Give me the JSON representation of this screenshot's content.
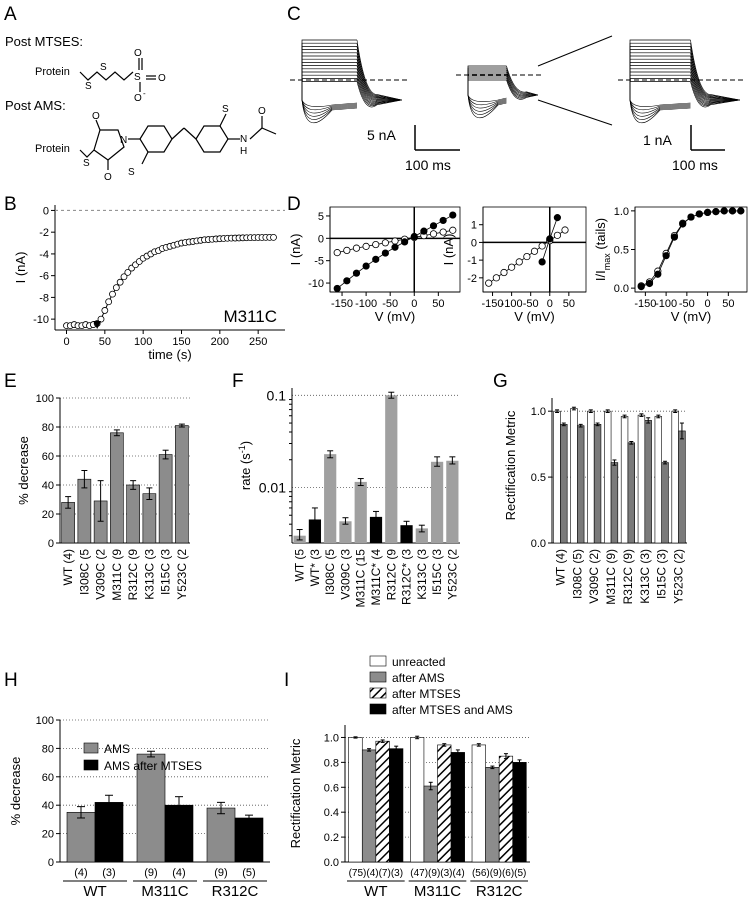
{
  "panels": {
    "A": {
      "label": "A",
      "post_mtses": "Post MTSES:",
      "post_ams": "Post AMS:",
      "protein": "Protein",
      "s": "S",
      "o_minus": "O",
      "n": "N",
      "h": "H",
      "o": "O"
    },
    "B": {
      "label": "B"
    },
    "C": {
      "label": "C",
      "scale_left_current": "5 nA",
      "scale_left_time": "100 ms",
      "scale_right_current": "1 nA",
      "scale_right_time": "100 ms"
    },
    "D": {
      "label": "D"
    },
    "E": {
      "label": "E"
    },
    "F": {
      "label": "F"
    },
    "G": {
      "label": "G"
    },
    "H": {
      "label": "H"
    },
    "I": {
      "label": "I"
    }
  },
  "chart_data": [
    {
      "id": "B",
      "type": "scatter",
      "xlabel": "time (s)",
      "ylabel": "I (nA)",
      "xlim": [
        -15,
        285
      ],
      "ylim": [
        -11,
        0.5
      ],
      "xticks": [
        0,
        50,
        100,
        150,
        200,
        250
      ],
      "yticks": [
        0,
        -2,
        -4,
        -6,
        -8,
        -10
      ],
      "annotation": "M311C",
      "arrow_at_x": 40,
      "dashed_zero_line": true,
      "points_x": [
        0,
        5,
        10,
        15,
        20,
        25,
        30,
        35,
        40,
        45,
        50,
        55,
        60,
        65,
        70,
        75,
        80,
        85,
        90,
        95,
        100,
        105,
        110,
        115,
        120,
        125,
        130,
        135,
        140,
        145,
        150,
        155,
        160,
        165,
        170,
        175,
        180,
        185,
        190,
        195,
        200,
        205,
        210,
        215,
        220,
        225,
        230,
        235,
        240,
        245,
        250,
        255,
        260,
        265,
        270
      ],
      "points_y": [
        -10.6,
        -10.6,
        -10.5,
        -10.6,
        -10.6,
        -10.5,
        -10.6,
        -10.5,
        -10.4,
        -10.0,
        -9.2,
        -8.4,
        -7.7,
        -7.1,
        -6.6,
        -6.1,
        -5.7,
        -5.3,
        -5.0,
        -4.7,
        -4.4,
        -4.2,
        -4.0,
        -3.8,
        -3.7,
        -3.5,
        -3.4,
        -3.3,
        -3.2,
        -3.1,
        -3.0,
        -2.95,
        -2.9,
        -2.85,
        -2.8,
        -2.75,
        -2.7,
        -2.68,
        -2.65,
        -2.62,
        -2.6,
        -2.58,
        -2.56,
        -2.55,
        -2.54,
        -2.53,
        -2.52,
        -2.51,
        -2.5,
        -2.5,
        -2.49,
        -2.49,
        -2.48,
        -2.48,
        -2.48
      ]
    },
    {
      "id": "D1",
      "type": "line",
      "xlabel": "V (mV)",
      "ylabel": "I (nA)",
      "xlim": [
        -175,
        95
      ],
      "ylim": [
        -12,
        7
      ],
      "xticks": [
        -150,
        -100,
        -50,
        0,
        50
      ],
      "yticks": [
        5,
        0,
        -5,
        -10
      ],
      "series": [
        {
          "style": "open",
          "x": [
            -160,
            -140,
            -120,
            -100,
            -80,
            -60,
            -40,
            -20,
            0,
            20,
            40,
            60,
            80
          ],
          "y": [
            -3.2,
            -2.7,
            -2.2,
            -1.8,
            -1.4,
            -1.0,
            -0.6,
            -0.2,
            0.2,
            0.6,
            1.0,
            1.4,
            1.8
          ]
        },
        {
          "style": "filled",
          "x": [
            -160,
            -140,
            -120,
            -100,
            -80,
            -60,
            -40,
            -20,
            0,
            20,
            40,
            60,
            80
          ],
          "y": [
            -11.2,
            -9.5,
            -7.8,
            -6.2,
            -4.7,
            -3.3,
            -2.0,
            -0.8,
            0.4,
            1.6,
            2.8,
            4.0,
            5.2
          ]
        }
      ]
    },
    {
      "id": "D2",
      "type": "line",
      "xlabel": "V (mV)",
      "ylabel": "I (nA)",
      "xlim": [
        -175,
        95
      ],
      "ylim": [
        -2.8,
        2.0
      ],
      "xticks": [
        -150,
        -100,
        -50,
        0,
        50
      ],
      "yticks": [
        1,
        0,
        -1,
        -2
      ],
      "series": [
        {
          "style": "open",
          "x": [
            -160,
            -140,
            -120,
            -100,
            -80,
            -60,
            -40,
            -20,
            0,
            20,
            40
          ],
          "y": [
            -2.3,
            -2.0,
            -1.7,
            -1.4,
            -1.1,
            -0.8,
            -0.5,
            -0.2,
            0.1,
            0.4,
            0.7
          ]
        },
        {
          "style": "filled",
          "x": [
            -20,
            0,
            20
          ],
          "y": [
            -1.1,
            0.2,
            1.4
          ]
        }
      ]
    },
    {
      "id": "D3",
      "type": "line",
      "xlabel": "V (mV)",
      "ylabel": "I/I",
      "ylabel_sub": "max",
      "ylabel_suffix": " (tails)",
      "xlim": [
        -175,
        95
      ],
      "ylim": [
        -0.05,
        1.05
      ],
      "xticks": [
        -150,
        -100,
        -50,
        0,
        50
      ],
      "yticks": [
        0.0,
        0.5,
        1.0
      ],
      "series": [
        {
          "style": "open",
          "x": [
            -160,
            -140,
            -120,
            -100,
            -80,
            -60,
            -40,
            -20,
            0,
            20,
            40,
            60,
            80
          ],
          "y": [
            0.03,
            0.08,
            0.22,
            0.45,
            0.68,
            0.84,
            0.92,
            0.96,
            0.98,
            0.99,
            1.0,
            1.0,
            1.0
          ]
        },
        {
          "style": "filled",
          "x": [
            -160,
            -140,
            -120,
            -100,
            -80,
            -60,
            -40,
            -20,
            0,
            20,
            40,
            60,
            80
          ],
          "y": [
            0.02,
            0.06,
            0.18,
            0.42,
            0.66,
            0.83,
            0.92,
            0.96,
            0.98,
            0.99,
            1.0,
            1.0,
            1.0
          ]
        }
      ]
    },
    {
      "id": "E",
      "type": "bar",
      "ylabel": "% decrease",
      "ylim": [
        0,
        100
      ],
      "yticks": [
        0,
        20,
        40,
        60,
        80,
        100
      ],
      "categories": [
        "WT (4)",
        "I308C (5",
        "V309C (2",
        "M311C (9",
        "R312C (9",
        "K313C (3",
        "I515C (3",
        "Y523C (2"
      ],
      "values": [
        28,
        44,
        29,
        76,
        40,
        34,
        61,
        81
      ],
      "errors": [
        4,
        6,
        14,
        2,
        3,
        4,
        3,
        1
      ],
      "colors": [
        "#8c8c8c"
      ]
    },
    {
      "id": "F",
      "type": "bar",
      "ylabel": "rate (s",
      "ylabel_sup": "-1",
      "ylabel_suffix": ")",
      "scale": "log",
      "ylim": [
        0.0025,
        0.12
      ],
      "yticks": [
        0.01,
        0.1
      ],
      "ytick_labels": [
        "0.01",
        "0.1"
      ],
      "categories": [
        "WT (5",
        "WT* (3",
        "I308C (5",
        "V309C (3",
        "M311C (15",
        "M311C* (4",
        "R312C (9",
        "R312C* (3",
        "K313C (3",
        "I515C (3",
        "Y523C (2"
      ],
      "values": [
        0.003,
        0.0045,
        0.023,
        0.0043,
        0.0115,
        0.0048,
        0.1,
        0.0039,
        0.0036,
        0.019,
        0.0195
      ],
      "errors_upper": [
        0.0035,
        0.006,
        0.025,
        0.0047,
        0.0125,
        0.0055,
        0.108,
        0.0043,
        0.0039,
        0.0215,
        0.0215
      ],
      "errors_lower": [
        0.0027,
        0.0038,
        0.021,
        0.004,
        0.0105,
        0.0042,
        0.093,
        0.0035,
        0.0033,
        0.017,
        0.018
      ],
      "bar_colors": [
        "#a0a0a0",
        "#000000",
        "#a0a0a0",
        "#a0a0a0",
        "#a0a0a0",
        "#000000",
        "#a0a0a0",
        "#000000",
        "#a0a0a0",
        "#a0a0a0",
        "#a0a0a0"
      ]
    },
    {
      "id": "G",
      "type": "bar",
      "ylabel": "Rectification Metric",
      "ylim": [
        0,
        1.1
      ],
      "yticks": [
        0.0,
        0.5,
        1.0
      ],
      "categories": [
        "WT (4)",
        "I308C (5)",
        "V309C (2)",
        "M311C (9)",
        "R312C (9)",
        "K313C (3)",
        "I515C (3)",
        "Y523C (2)"
      ],
      "series": [
        {
          "style": "unreacted",
          "values": [
            1.0,
            1.02,
            1.0,
            1.0,
            0.96,
            0.97,
            0.96,
            1.0
          ],
          "errors": [
            0.01,
            0.01,
            0.01,
            0.01,
            0.01,
            0.01,
            0.01,
            0.01
          ]
        },
        {
          "style": "after AMS",
          "values": [
            0.9,
            0.89,
            0.9,
            0.61,
            0.76,
            0.93,
            0.61,
            0.85
          ],
          "errors": [
            0.01,
            0.01,
            0.01,
            0.02,
            0.01,
            0.02,
            0.01,
            0.06
          ]
        }
      ],
      "colors": [
        "#ffffff",
        "#7a7a7a"
      ]
    },
    {
      "id": "H",
      "type": "bar",
      "ylabel": "% decrease",
      "ylim": [
        0,
        100
      ],
      "yticks": [
        0,
        20,
        40,
        60,
        80,
        100
      ],
      "groups": [
        "WT",
        "M311C",
        "R312C"
      ],
      "counts": [
        [
          "(4)",
          "(3)"
        ],
        [
          "(9)",
          "(4)"
        ],
        [
          "(9)",
          "(5)"
        ]
      ],
      "series": [
        {
          "name": "AMS",
          "values": [
            35,
            76,
            38
          ],
          "errors": [
            4,
            2,
            4
          ]
        },
        {
          "name": "AMS after MTSES",
          "values": [
            42,
            40,
            31
          ],
          "errors": [
            5,
            6,
            2
          ]
        }
      ],
      "colors": [
        "#8c8c8c",
        "#000000"
      ]
    },
    {
      "id": "I",
      "type": "bar",
      "ylabel": "Rectification Metric",
      "ylim": [
        0,
        1.1
      ],
      "yticks": [
        0.0,
        0.2,
        0.4,
        0.6,
        0.8,
        1.0
      ],
      "ytick_labels": [
        "0.0",
        "0.2",
        "0.4",
        "0.6",
        "0.8",
        "1.0"
      ],
      "groups": [
        "WT",
        "M311C",
        "R312C"
      ],
      "counts": [
        "(75)(4)(7)(3)",
        "(47)(9)(3)(4)",
        "(56)(9)(6)(5)"
      ],
      "series": [
        {
          "name": "unreacted",
          "values": [
            1.0,
            1.0,
            0.94
          ],
          "errors": [
            0.005,
            0.01,
            0.01
          ]
        },
        {
          "name": "after AMS",
          "values": [
            0.9,
            0.61,
            0.76
          ],
          "errors": [
            0.01,
            0.03,
            0.01
          ]
        },
        {
          "name": "after MTSES",
          "values": [
            0.97,
            0.94,
            0.85
          ],
          "errors": [
            0.01,
            0.01,
            0.02
          ]
        },
        {
          "name": "after MTSES and AMS",
          "values": [
            0.91,
            0.88,
            0.8
          ],
          "errors": [
            0.02,
            0.02,
            0.02
          ]
        }
      ],
      "colors": [
        "#ffffff",
        "#8c8c8c",
        "hatch",
        "#000000"
      ]
    }
  ]
}
